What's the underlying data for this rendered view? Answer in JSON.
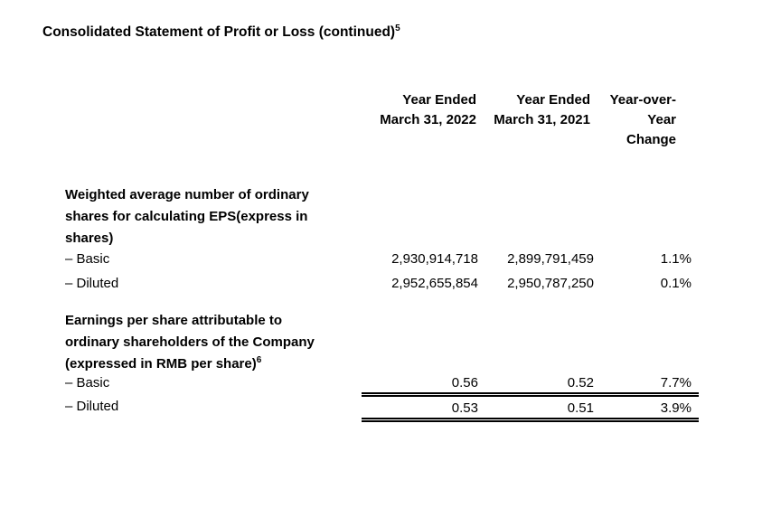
{
  "page": {
    "title": "Consolidated Statement of Profit or Loss (continued)",
    "title_footnote": "5",
    "background": "#ffffff",
    "text_color": "#000000"
  },
  "table": {
    "header": {
      "fy2022_lines": [
        "Year Ended",
        "March 31, 2022"
      ],
      "fy2021_lines": [
        "Year Ended",
        "March 31, 2021"
      ],
      "yoy_lines": [
        "Year-over-",
        "Year",
        "Change"
      ]
    },
    "sections": [
      {
        "heading_lines": [
          "Weighted average number of ordinary",
          "shares for calculating EPS(express in",
          "shares)"
        ],
        "heading_footnote": "",
        "rows": [
          {
            "label": "– Basic",
            "fy2022": "2,930,914,718",
            "fy2021": "2,899,791,459",
            "yoy": "1.1%"
          },
          {
            "label": "– Diluted",
            "fy2022": "2,952,655,854",
            "fy2021": "2,950,787,250",
            "yoy": "0.1%"
          }
        ]
      },
      {
        "heading_lines": [
          "Earnings per share attributable to",
          "ordinary shareholders of the Company",
          "(expressed in RMB per share)"
        ],
        "heading_footnote": "6",
        "rows": [
          {
            "label": "– Basic",
            "fy2022": "0.56",
            "fy2021": "0.52",
            "yoy": "7.7%"
          },
          {
            "label": "– Diluted",
            "fy2022": "0.53",
            "fy2021": "0.51",
            "yoy": "3.9%"
          }
        ]
      }
    ]
  }
}
